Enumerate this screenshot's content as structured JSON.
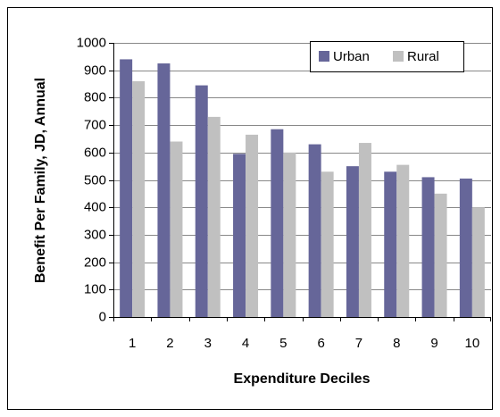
{
  "chart_data": {
    "type": "bar",
    "y_label": "Benefit Per Family, JD, Annual",
    "x_label": "Expenditure Deciles",
    "categories": [
      "1",
      "2",
      "3",
      "4",
      "5",
      "6",
      "7",
      "8",
      "9",
      "10"
    ],
    "series": [
      {
        "name": "Urban",
        "color": "#666699",
        "values": [
          940,
          925,
          845,
          595,
          685,
          630,
          550,
          530,
          510,
          505
        ]
      },
      {
        "name": "Rural",
        "color": "#c0c0c0",
        "values": [
          860,
          640,
          730,
          665,
          600,
          530,
          635,
          555,
          450,
          400
        ]
      }
    ],
    "ylim": [
      0,
      1000
    ],
    "yticks": [
      0,
      100,
      200,
      300,
      400,
      500,
      600,
      700,
      800,
      900,
      1000
    ],
    "grid": true,
    "legend": "top-right"
  }
}
